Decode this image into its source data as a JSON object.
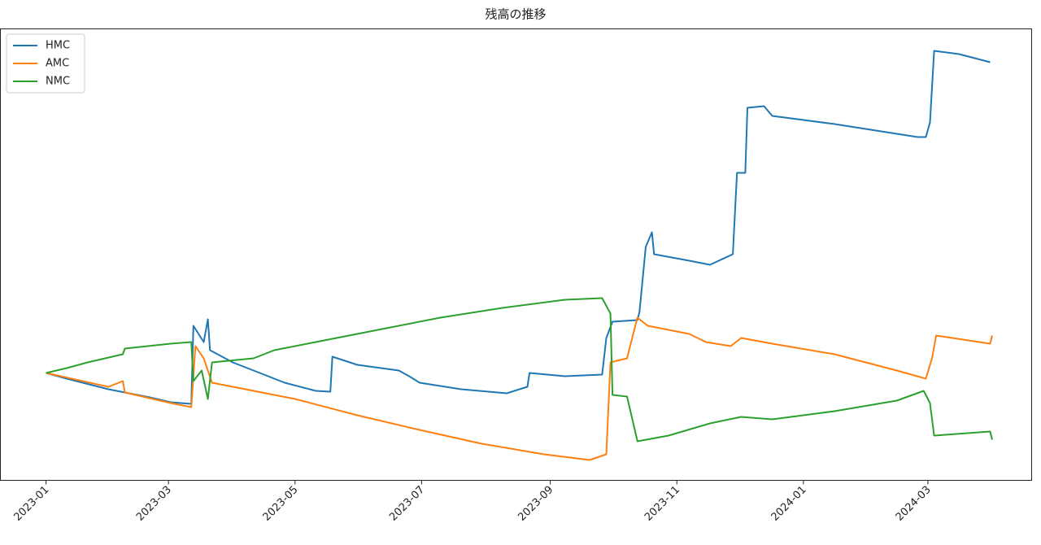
{
  "chart_data": {
    "type": "line",
    "title": "残高の推移",
    "xlim": [
      -22,
      475
    ],
    "ylim": [
      -132,
      423
    ],
    "xticks": [
      {
        "value": 0,
        "label": "2023-01"
      },
      {
        "value": 59,
        "label": "2023-03"
      },
      {
        "value": 120,
        "label": "2023-05"
      },
      {
        "value": 181,
        "label": "2023-07"
      },
      {
        "value": 243,
        "label": "2023-09"
      },
      {
        "value": 304,
        "label": "2023-11"
      },
      {
        "value": 365,
        "label": "2024-01"
      },
      {
        "value": 425,
        "label": "2024-03"
      }
    ],
    "legend": "upper left",
    "series": [
      {
        "name": "HMC",
        "color": "#1f77b4",
        "x": [
          0,
          10,
          30,
          50,
          60,
          70,
          71,
          76,
          78,
          79,
          90,
          100,
          115,
          130,
          137,
          138,
          150,
          170,
          175,
          180,
          200,
          222,
          232,
          233,
          250,
          268,
          270,
          273,
          285,
          286,
          289,
          292,
          293,
          310,
          320,
          331,
          333,
          337,
          338,
          346,
          350,
          380,
          420,
          424,
          426,
          428,
          440,
          455
        ],
        "values": [
          0,
          -7,
          -20,
          -30,
          -36,
          -38,
          58,
          38,
          66,
          28,
          13,
          3,
          -12,
          -22,
          -23,
          20,
          10,
          3,
          -4,
          -12,
          -20,
          -25,
          -17,
          0,
          -4,
          -2,
          43,
          63,
          65,
          75,
          155,
          173,
          146,
          138,
          133,
          146,
          246,
          246,
          326,
          328,
          316,
          306,
          290,
          290,
          308,
          396,
          392,
          382
        ]
      },
      {
        "name": "AMC",
        "color": "#ff7f0e",
        "x": [
          0,
          30,
          37,
          38,
          60,
          70,
          72,
          76,
          80,
          100,
          120,
          150,
          180,
          210,
          240,
          262,
          270,
          272,
          280,
          283,
          285,
          290,
          310,
          318,
          330,
          335,
          350,
          380,
          410,
          424,
          427,
          429,
          455,
          456
        ],
        "values": [
          0,
          -17,
          -10,
          -24,
          -37,
          -42,
          33,
          18,
          -12,
          -22,
          -32,
          -52,
          -70,
          -87,
          -100,
          -107,
          -100,
          13,
          18,
          48,
          68,
          58,
          48,
          38,
          33,
          43,
          36,
          23,
          3,
          -7,
          18,
          46,
          36,
          46
        ]
      },
      {
        "name": "NMC",
        "color": "#2ca02c",
        "x": [
          0,
          10,
          20,
          37,
          38,
          60,
          70,
          71,
          75,
          78,
          80,
          100,
          110,
          130,
          160,
          190,
          220,
          250,
          268,
          272,
          273,
          280,
          285,
          300,
          320,
          335,
          350,
          380,
          410,
          423,
          426,
          428,
          455,
          456
        ],
        "values": [
          0,
          6,
          13,
          23,
          30,
          36,
          38,
          -10,
          3,
          -32,
          13,
          18,
          28,
          38,
          53,
          68,
          80,
          90,
          92,
          73,
          -27,
          -29,
          -84,
          -77,
          -62,
          -54,
          -57,
          -47,
          -34,
          -22,
          -37,
          -77,
          -72,
          -82
        ]
      }
    ]
  }
}
